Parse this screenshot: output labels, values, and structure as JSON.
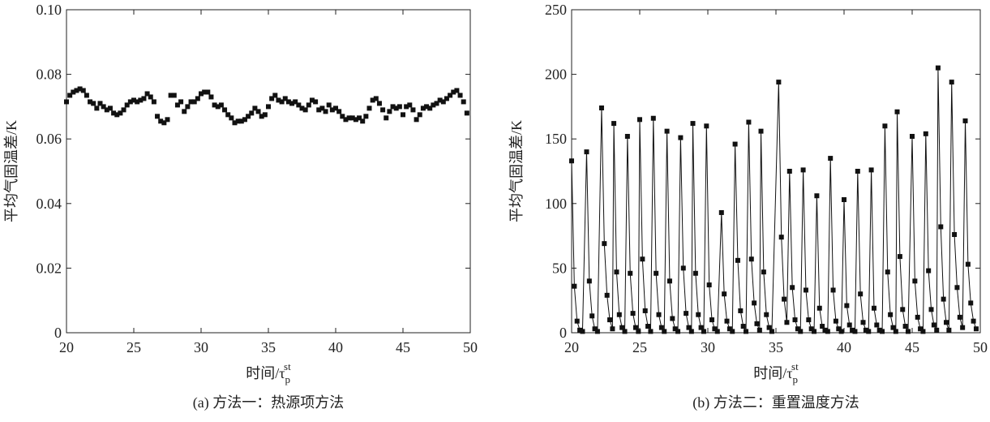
{
  "chart_data": [
    {
      "type": "scatter",
      "color": "#111",
      "ylabel": "平均气固温差/K",
      "xlabel": {
        "text": "时间/τ",
        "sub": "p",
        "sup": "st"
      },
      "caption": "(a) 方法一：热源项方法",
      "xlim": [
        20,
        50
      ],
      "xticks": [
        20,
        25,
        30,
        35,
        40,
        45,
        50
      ],
      "ylim": [
        0,
        0.1
      ],
      "yticks": [
        0,
        0.02,
        0.04,
        0.06,
        0.08,
        {
          "value": 0.1,
          "label": "0.10"
        }
      ],
      "x": [
        20.0,
        20.25,
        20.5,
        20.75,
        21.0,
        21.25,
        21.5,
        21.75,
        22.0,
        22.25,
        22.5,
        22.75,
        23.0,
        23.25,
        23.5,
        23.75,
        24.0,
        24.25,
        24.5,
        24.75,
        25.0,
        25.25,
        25.5,
        25.75,
        26.0,
        26.25,
        26.5,
        26.75,
        27.0,
        27.25,
        27.5,
        27.75,
        28.0,
        28.25,
        28.5,
        28.75,
        29.0,
        29.25,
        29.5,
        29.75,
        30.0,
        30.25,
        30.5,
        30.75,
        31.0,
        31.25,
        31.5,
        31.75,
        32.0,
        32.25,
        32.5,
        32.75,
        33.0,
        33.25,
        33.5,
        33.75,
        34.0,
        34.25,
        34.5,
        34.75,
        35.0,
        35.25,
        35.5,
        35.75,
        36.0,
        36.25,
        36.5,
        36.75,
        37.0,
        37.25,
        37.5,
        37.75,
        38.0,
        38.25,
        38.5,
        38.75,
        39.0,
        39.25,
        39.5,
        39.75,
        40.0,
        40.25,
        40.5,
        40.75,
        41.0,
        41.25,
        41.5,
        41.75,
        42.0,
        42.25,
        42.5,
        42.75,
        43.0,
        43.25,
        43.5,
        43.75,
        44.0,
        44.25,
        44.5,
        44.75,
        45.0,
        45.25,
        45.5,
        45.75,
        46.0,
        46.25,
        46.5,
        46.75,
        47.0,
        47.25,
        47.5,
        47.75,
        48.0,
        48.25,
        48.5,
        48.75,
        49.0,
        49.25,
        49.5,
        49.75
      ],
      "values": [
        0.0715,
        0.0735,
        0.0745,
        0.075,
        0.0755,
        0.075,
        0.0735,
        0.0715,
        0.071,
        0.0695,
        0.071,
        0.07,
        0.069,
        0.0695,
        0.068,
        0.0675,
        0.068,
        0.069,
        0.0705,
        0.0715,
        0.072,
        0.0715,
        0.072,
        0.0725,
        0.074,
        0.073,
        0.0715,
        0.067,
        0.0655,
        0.065,
        0.066,
        0.0735,
        0.0735,
        0.0705,
        0.0715,
        0.0685,
        0.07,
        0.0715,
        0.0715,
        0.0725,
        0.074,
        0.0745,
        0.0745,
        0.073,
        0.0705,
        0.07,
        0.0705,
        0.069,
        0.0675,
        0.0665,
        0.065,
        0.0655,
        0.0655,
        0.066,
        0.067,
        0.068,
        0.0695,
        0.0685,
        0.067,
        0.0675,
        0.07,
        0.0725,
        0.0735,
        0.072,
        0.0715,
        0.0725,
        0.0715,
        0.071,
        0.0715,
        0.0705,
        0.0695,
        0.069,
        0.0705,
        0.072,
        0.0715,
        0.069,
        0.0695,
        0.0685,
        0.0705,
        0.069,
        0.0695,
        0.0685,
        0.067,
        0.066,
        0.0665,
        0.0665,
        0.066,
        0.0665,
        0.0655,
        0.067,
        0.0695,
        0.072,
        0.0725,
        0.071,
        0.069,
        0.0665,
        0.0685,
        0.07,
        0.0695,
        0.07,
        0.0675,
        0.07,
        0.0705,
        0.069,
        0.066,
        0.0675,
        0.0695,
        0.07,
        0.0695,
        0.0705,
        0.071,
        0.072,
        0.0715,
        0.0725,
        0.0735,
        0.0745,
        0.075,
        0.0735,
        0.0715,
        0.068
      ]
    },
    {
      "type": "line",
      "color": "#111",
      "ylabel": "平均气固温差/K",
      "xlabel": {
        "text": "时间/τ",
        "sub": "p",
        "sup": "st"
      },
      "caption": "(b) 方法二：重置温度方法",
      "xlim": [
        20,
        50
      ],
      "xticks": [
        20,
        25,
        30,
        35,
        40,
        45,
        50
      ],
      "ylim": [
        0,
        250
      ],
      "yticks": [
        0,
        50,
        100,
        150,
        200,
        250
      ],
      "x": [
        20.0,
        20.2,
        20.4,
        20.6,
        20.8,
        21.1,
        21.3,
        21.5,
        21.7,
        21.9,
        22.2,
        22.4,
        22.6,
        22.8,
        23.0,
        23.1,
        23.3,
        23.5,
        23.7,
        23.9,
        24.1,
        24.3,
        24.5,
        24.7,
        24.9,
        25.0,
        25.2,
        25.4,
        25.6,
        25.8,
        26.0,
        26.2,
        26.4,
        26.6,
        26.8,
        27.0,
        27.2,
        27.4,
        27.6,
        27.8,
        28.0,
        28.2,
        28.4,
        28.6,
        28.8,
        28.9,
        29.1,
        29.3,
        29.5,
        29.7,
        29.9,
        30.1,
        30.3,
        30.5,
        30.7,
        31.0,
        31.2,
        31.4,
        31.6,
        31.8,
        32.0,
        32.2,
        32.4,
        32.6,
        32.8,
        33.0,
        33.2,
        33.4,
        33.6,
        33.8,
        33.9,
        34.1,
        34.3,
        34.5,
        34.7,
        35.2,
        35.4,
        35.6,
        35.8,
        36.0,
        36.2,
        36.4,
        36.6,
        36.8,
        37.0,
        37.2,
        37.4,
        37.6,
        37.8,
        38.0,
        38.2,
        38.4,
        38.6,
        38.8,
        39.0,
        39.2,
        39.4,
        39.6,
        39.8,
        40.0,
        40.2,
        40.4,
        40.6,
        40.8,
        41.0,
        41.2,
        41.4,
        41.6,
        41.8,
        42.0,
        42.2,
        42.4,
        42.6,
        42.8,
        43.0,
        43.2,
        43.4,
        43.6,
        43.8,
        43.9,
        44.1,
        44.3,
        44.5,
        44.7,
        45.0,
        45.2,
        45.4,
        45.6,
        45.8,
        46.0,
        46.2,
        46.4,
        46.6,
        46.8,
        46.9,
        47.1,
        47.3,
        47.5,
        47.7,
        47.9,
        48.1,
        48.3,
        48.5,
        48.7,
        48.9,
        49.1,
        49.3,
        49.5,
        49.7
      ],
      "values": [
        133,
        36,
        9,
        2,
        1,
        140,
        40,
        13,
        3,
        1,
        174,
        69,
        29,
        10,
        3,
        162,
        47,
        14,
        4,
        1,
        152,
        46,
        15,
        4,
        1,
        165,
        57,
        17,
        5,
        1,
        166,
        46,
        14,
        4,
        1,
        156,
        40,
        11,
        3,
        1,
        151,
        50,
        15,
        4,
        1,
        162,
        46,
        14,
        4,
        1,
        160,
        37,
        10,
        3,
        1,
        93,
        30,
        9,
        3,
        1,
        146,
        56,
        17,
        5,
        1,
        163,
        57,
        23,
        7,
        2,
        156,
        47,
        14,
        4,
        1,
        194,
        74,
        26,
        8,
        125,
        35,
        10,
        3,
        1,
        126,
        33,
        10,
        3,
        1,
        106,
        19,
        5,
        2,
        1,
        135,
        33,
        9,
        3,
        1,
        103,
        21,
        6,
        2,
        1,
        125,
        30,
        8,
        2,
        1,
        126,
        19,
        6,
        2,
        1,
        160,
        47,
        14,
        4,
        1,
        171,
        59,
        18,
        5,
        1,
        152,
        40,
        12,
        3,
        1,
        154,
        48,
        18,
        6,
        2,
        205,
        82,
        26,
        8,
        2,
        194,
        76,
        35,
        12,
        4,
        164,
        53,
        23,
        9,
        3
      ]
    }
  ]
}
